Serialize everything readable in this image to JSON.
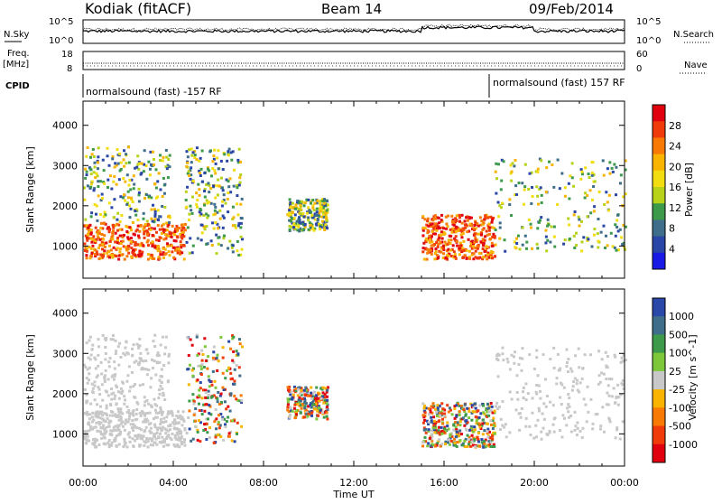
{
  "header": {
    "site": "Kodiak (fitACF)",
    "beam": "Beam 14",
    "date": "09/Feb/2014"
  },
  "noise_panel": {
    "left_label": "N.Sky",
    "right_label": "N.Search",
    "tick_top": "10^5",
    "tick_bottom": "10^0",
    "tick_top_right": "10^5",
    "tick_bottom_right": "10^0"
  },
  "freq_panel": {
    "left_label_1": "Freq.",
    "left_label_2": "[MHz]",
    "right_label": "Nave",
    "left_ticks": [
      "18",
      "8"
    ],
    "right_ticks": [
      "60",
      "0"
    ]
  },
  "cpid_panel": {
    "label": "CPID",
    "segments": [
      {
        "text": "normalsound (fast) -157 RF",
        "start_hour": 0
      },
      {
        "text": "normalsound (fast) 157 RF",
        "start_hour": 18
      }
    ]
  },
  "chart_data": [
    {
      "type": "heatmap",
      "parameter": "Power",
      "ylabel": "Slant Range [km]",
      "ylim": [
        200,
        4600
      ],
      "yticks": [
        1000,
        2000,
        3000,
        4000
      ],
      "xlim": [
        0,
        24
      ],
      "colorbar": {
        "label": "Power [dB]",
        "ticks": [
          "28",
          "24",
          "20",
          "16",
          "12",
          "8",
          "4"
        ],
        "colors": [
          "#e0000e",
          "#f03a0a",
          "#f87a05",
          "#f8b400",
          "#f2de10",
          "#b8d21a",
          "#3c9a4a",
          "#3f6e8a",
          "#2a46a6",
          "#1a1ae6"
        ]
      },
      "regions": [
        {
          "t": [
            0.0,
            4.5
          ],
          "r": [
            700,
            1600
          ],
          "level": "strong"
        },
        {
          "t": [
            0.0,
            3.8
          ],
          "r": [
            1600,
            3500
          ],
          "level": "moderate"
        },
        {
          "t": [
            4.5,
            7.0
          ],
          "r": [
            800,
            3500
          ],
          "level": "moderate"
        },
        {
          "t": [
            9.0,
            10.8
          ],
          "r": [
            1400,
            2200
          ],
          "level": "moderate"
        },
        {
          "t": [
            15.0,
            18.2
          ],
          "r": [
            700,
            1800
          ],
          "level": "strong"
        },
        {
          "t": [
            18.2,
            24.0
          ],
          "r": [
            900,
            3200
          ],
          "level": "moderate"
        }
      ]
    },
    {
      "type": "heatmap",
      "parameter": "Velocity",
      "ylabel": "Slant Range [km]",
      "ylim": [
        200,
        4600
      ],
      "yticks": [
        1000,
        2000,
        3000,
        4000
      ],
      "xlabel": "Time UT",
      "xlim": [
        0,
        24
      ],
      "xticks": [
        "00:00",
        "04:00",
        "08:00",
        "12:00",
        "16:00",
        "20:00",
        "00:00"
      ],
      "colorbar": {
        "label": "Velocity [m s^-1]",
        "ticks": [
          "1000",
          "500",
          "100",
          "25",
          "-25",
          "-100",
          "-500",
          "-1000"
        ],
        "colors": [
          "#2a48a8",
          "#3f6e8a",
          "#3c9a4a",
          "#7cc83a",
          "#c8c8c8",
          "#f8b400",
          "#f87a05",
          "#f03a0a",
          "#e0000e"
        ]
      }
    }
  ]
}
